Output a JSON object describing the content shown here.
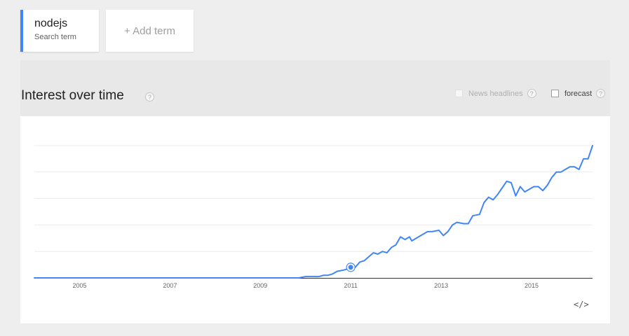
{
  "search_terms": [
    {
      "name": "nodejs",
      "subtitle": "Search term",
      "color": "#4285f4"
    }
  ],
  "add_term": {
    "label": "+ Add term"
  },
  "section": {
    "title": "Interest over time",
    "help_glyph": "?"
  },
  "options": {
    "news_headlines": {
      "label": "News headlines",
      "checked": false,
      "enabled": false
    },
    "forecast": {
      "label": "forecast",
      "checked": false,
      "enabled": true
    }
  },
  "embed": {
    "icon": "embed-code-icon",
    "glyph": "</>"
  },
  "chart_data": {
    "type": "line",
    "xlabel": "",
    "ylabel": "",
    "x_ticks": [
      "2005",
      "2007",
      "2009",
      "2011",
      "2013",
      "2015"
    ],
    "ylim": [
      0,
      100
    ],
    "grid": true,
    "line_color": "#4285f4",
    "highlighted_point": {
      "x": 2011.0,
      "y": 8
    },
    "series": [
      {
        "values": [
          [
            2004.0,
            0
          ],
          [
            2009.85,
            0
          ],
          [
            2010.0,
            1
          ],
          [
            2010.3,
            1
          ],
          [
            2010.4,
            2
          ],
          [
            2010.5,
            2
          ],
          [
            2010.6,
            3
          ],
          [
            2010.7,
            5
          ],
          [
            2010.85,
            6
          ],
          [
            2010.95,
            7
          ],
          [
            2011.0,
            8
          ],
          [
            2011.1,
            8
          ],
          [
            2011.2,
            12
          ],
          [
            2011.3,
            13
          ],
          [
            2011.4,
            16
          ],
          [
            2011.5,
            19
          ],
          [
            2011.6,
            18
          ],
          [
            2011.7,
            20
          ],
          [
            2011.8,
            19
          ],
          [
            2011.9,
            23
          ],
          [
            2012.0,
            25
          ],
          [
            2012.1,
            31
          ],
          [
            2012.2,
            29
          ],
          [
            2012.3,
            31
          ],
          [
            2012.35,
            28
          ],
          [
            2012.5,
            31
          ],
          [
            2012.7,
            35
          ],
          [
            2012.8,
            35
          ],
          [
            2012.95,
            36
          ],
          [
            2013.05,
            32
          ],
          [
            2013.15,
            35
          ],
          [
            2013.25,
            40
          ],
          [
            2013.35,
            42
          ],
          [
            2013.5,
            41
          ],
          [
            2013.6,
            41
          ],
          [
            2013.7,
            47
          ],
          [
            2013.85,
            48
          ],
          [
            2013.95,
            57
          ],
          [
            2014.05,
            61
          ],
          [
            2014.15,
            59
          ],
          [
            2014.25,
            63
          ],
          [
            2014.35,
            68
          ],
          [
            2014.45,
            73
          ],
          [
            2014.55,
            72
          ],
          [
            2014.65,
            62
          ],
          [
            2014.75,
            69
          ],
          [
            2014.85,
            65
          ],
          [
            2014.95,
            67
          ],
          [
            2015.05,
            69
          ],
          [
            2015.15,
            69
          ],
          [
            2015.25,
            66
          ],
          [
            2015.35,
            70
          ],
          [
            2015.45,
            76
          ],
          [
            2015.55,
            80
          ],
          [
            2015.65,
            80
          ],
          [
            2015.75,
            82
          ],
          [
            2015.85,
            84
          ],
          [
            2015.95,
            84
          ],
          [
            2016.05,
            82
          ],
          [
            2016.15,
            90
          ],
          [
            2016.25,
            90
          ],
          [
            2016.35,
            100
          ]
        ]
      }
    ]
  }
}
